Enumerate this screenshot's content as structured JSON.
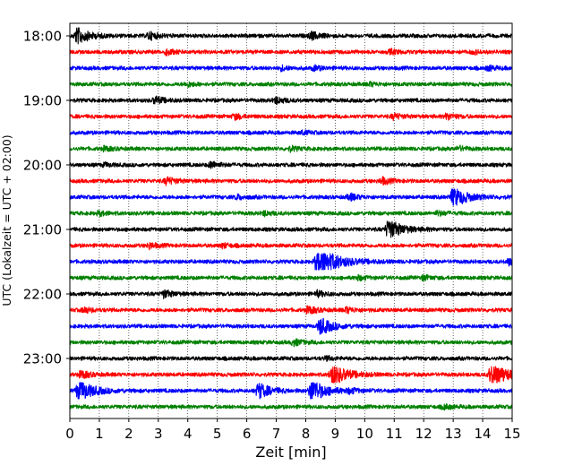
{
  "chart_data": {
    "type": "line",
    "subtype": "helicorder",
    "xlabel": "Zeit  [min]",
    "ylabel": "UTC (Lokalzeit = UTC + 02:00)",
    "xlim": [
      0,
      15
    ],
    "x_ticks": [
      0,
      1,
      2,
      3,
      4,
      5,
      6,
      7,
      8,
      9,
      10,
      11,
      12,
      13,
      14,
      15
    ],
    "x_tick_labels": [
      "0",
      "1",
      "2",
      "3",
      "4",
      "5",
      "6",
      "7",
      "8",
      "9",
      "10",
      "11",
      "12",
      "13",
      "14",
      "15"
    ],
    "y_tick_labels": [
      "18:00",
      "19:00",
      "20:00",
      "21:00",
      "22:00",
      "23:00"
    ],
    "y_tick_rows": [
      0,
      4,
      8,
      12,
      16,
      20
    ],
    "row_minutes": 15,
    "start_time": "18:00",
    "grid": "vertical dotted lines at each minute",
    "row_colors": [
      "#000000",
      "#ff0000",
      "#0000ff",
      "#008000"
    ],
    "rows": [
      {
        "start": "18:00",
        "color": "#000000",
        "events": [
          {
            "t": 0.25,
            "amp": 1.6
          },
          {
            "t": 2.7,
            "amp": 0.7
          },
          {
            "t": 8.2,
            "amp": 0.7
          }
        ]
      },
      {
        "start": "18:15",
        "color": "#ff0000",
        "events": [
          {
            "t": 3.3,
            "amp": 0.5
          },
          {
            "t": 10.9,
            "amp": 0.4
          },
          {
            "t": 13.7,
            "amp": 0.3
          }
        ]
      },
      {
        "start": "18:30",
        "color": "#0000ff",
        "events": [
          {
            "t": 7.2,
            "amp": 0.4
          },
          {
            "t": 8.3,
            "amp": 0.4
          },
          {
            "t": 14.2,
            "amp": 0.4
          }
        ]
      },
      {
        "start": "18:45",
        "color": "#008000",
        "events": [
          {
            "t": 4.0,
            "amp": 0.4
          },
          {
            "t": 10.2,
            "amp": 0.3
          }
        ]
      },
      {
        "start": "19:00",
        "color": "#000000",
        "events": [
          {
            "t": 2.9,
            "amp": 0.7
          },
          {
            "t": 7.0,
            "amp": 0.6
          }
        ]
      },
      {
        "start": "19:15",
        "color": "#ff0000",
        "events": [
          {
            "t": 5.6,
            "amp": 0.5
          },
          {
            "t": 11.0,
            "amp": 0.5
          },
          {
            "t": 12.8,
            "amp": 0.6
          }
        ]
      },
      {
        "start": "19:30",
        "color": "#0000ff",
        "events": [
          {
            "t": 7.9,
            "amp": 0.3
          }
        ]
      },
      {
        "start": "19:45",
        "color": "#008000",
        "events": [
          {
            "t": 1.2,
            "amp": 0.4
          },
          {
            "t": 7.5,
            "amp": 0.4
          },
          {
            "t": 13.2,
            "amp": 0.4
          }
        ]
      },
      {
        "start": "20:00",
        "color": "#000000",
        "events": [
          {
            "t": 4.8,
            "amp": 0.6
          },
          {
            "t": 1.2,
            "amp": 0.3
          }
        ]
      },
      {
        "start": "20:15",
        "color": "#ff0000",
        "events": [
          {
            "t": 3.3,
            "amp": 0.7
          },
          {
            "t": 10.6,
            "amp": 0.6
          }
        ]
      },
      {
        "start": "20:30",
        "color": "#0000ff",
        "events": [
          {
            "t": 5.7,
            "amp": 0.4
          },
          {
            "t": 9.5,
            "amp": 0.6
          },
          {
            "t": 13.0,
            "amp": 2.0
          }
        ]
      },
      {
        "start": "20:45",
        "color": "#008000",
        "events": [
          {
            "t": 1.0,
            "amp": 0.4
          },
          {
            "t": 6.6,
            "amp": 0.4
          },
          {
            "t": 12.5,
            "amp": 0.4
          }
        ]
      },
      {
        "start": "21:00",
        "color": "#000000",
        "events": [
          {
            "t": 10.8,
            "amp": 2.0
          }
        ]
      },
      {
        "start": "21:15",
        "color": "#ff0000",
        "events": [
          {
            "t": 2.7,
            "amp": 0.5
          },
          {
            "t": 5.2,
            "amp": 0.4
          }
        ]
      },
      {
        "start": "21:30",
        "color": "#0000ff",
        "events": [
          {
            "t": 8.4,
            "amp": 3.3
          },
          {
            "t": 14.9,
            "amp": 0.6
          }
        ]
      },
      {
        "start": "21:45",
        "color": "#008000",
        "events": [
          {
            "t": 9.8,
            "amp": 0.4
          },
          {
            "t": 12.0,
            "amp": 0.4
          }
        ]
      },
      {
        "start": "22:00",
        "color": "#000000",
        "events": [
          {
            "t": 3.2,
            "amp": 0.7
          },
          {
            "t": 8.4,
            "amp": 0.5
          }
        ]
      },
      {
        "start": "22:15",
        "color": "#ff0000",
        "events": [
          {
            "t": 0.5,
            "amp": 0.5
          },
          {
            "t": 8.1,
            "amp": 0.7
          },
          {
            "t": 9.4,
            "amp": 0.5
          }
        ]
      },
      {
        "start": "22:30",
        "color": "#0000ff",
        "events": [
          {
            "t": 8.5,
            "amp": 1.6
          }
        ]
      },
      {
        "start": "22:45",
        "color": "#008000",
        "events": [
          {
            "t": 7.6,
            "amp": 0.6
          }
        ]
      },
      {
        "start": "23:00",
        "color": "#000000",
        "events": [
          {
            "t": 8.7,
            "amp": 0.3
          }
        ]
      },
      {
        "start": "23:15",
        "color": "#ff0000",
        "events": [
          {
            "t": 0.4,
            "amp": 0.7
          },
          {
            "t": 8.9,
            "amp": 2.2
          },
          {
            "t": 14.3,
            "amp": 2.5
          }
        ]
      },
      {
        "start": "23:30",
        "color": "#0000ff",
        "events": [
          {
            "t": 0.3,
            "amp": 2.2
          },
          {
            "t": 6.4,
            "amp": 1.5
          },
          {
            "t": 8.2,
            "amp": 2.2
          },
          {
            "t": 9.5,
            "amp": 0.4
          }
        ]
      },
      {
        "start": "23:45",
        "color": "#008000",
        "events": [
          {
            "t": 12.7,
            "amp": 0.4
          }
        ]
      }
    ]
  }
}
